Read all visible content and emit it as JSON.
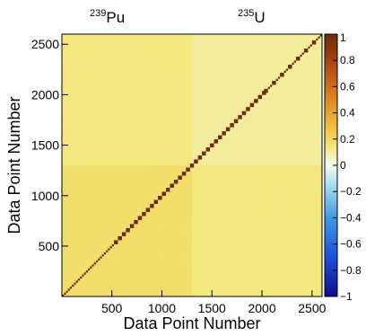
{
  "chart_data": {
    "type": "heatmap",
    "title": "",
    "xlabel": "Data Point Number",
    "ylabel": "Data Point Number",
    "xlim": [
      1,
      2600
    ],
    "ylim": [
      1,
      2600
    ],
    "x_ticks": [
      500,
      1000,
      1500,
      2000,
      2500
    ],
    "y_ticks": [
      500,
      1000,
      1500,
      2000,
      2500
    ],
    "x_tick_labels": [
      "500",
      "1000",
      "1500",
      "2000",
      "2500"
    ],
    "y_tick_labels": [
      "500",
      "1000",
      "1500",
      "2000",
      "2500"
    ],
    "region_boundary": 1300,
    "regions": [
      {
        "mass": "239",
        "element": "Pu",
        "range": [
          1,
          1300
        ]
      },
      {
        "mass": "235",
        "element": "U",
        "range": [
          1300,
          2600
        ]
      }
    ],
    "colorbar": {
      "range": [
        -1,
        1
      ],
      "ticks": [
        -1,
        -0.8,
        -0.6,
        -0.4,
        -0.2,
        0,
        0.2,
        0.4,
        0.6,
        0.8,
        1
      ],
      "tick_labels": [
        "−1",
        "−0.8",
        "−0.6",
        "−0.4",
        "−0.2",
        "0",
        "0.2",
        "0.4",
        "0.6",
        "0.8",
        "1"
      ]
    },
    "pattern": {
      "description": "dense periodic block correlation pattern; values mostly between -0.4 and 0.6, diagonal = 1",
      "block_period": 40
    }
  }
}
